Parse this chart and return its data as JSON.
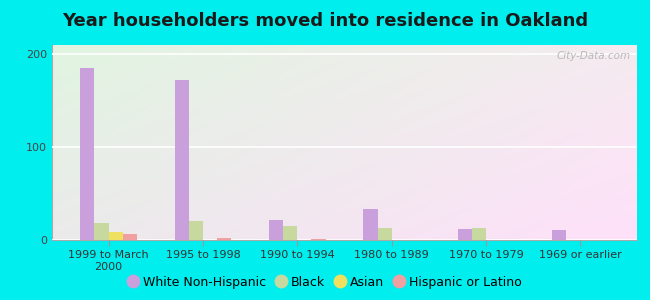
{
  "title": "Year householders moved into residence in Oakland",
  "categories": [
    "1999 to March\n2000",
    "1995 to 1998",
    "1990 to 1994",
    "1980 to 1989",
    "1970 to 1979",
    "1969 or earlier"
  ],
  "series": {
    "White Non-Hispanic": [
      185,
      172,
      22,
      33,
      12,
      11
    ],
    "Black": [
      18,
      20,
      15,
      13,
      13,
      0
    ],
    "Asian": [
      9,
      0,
      0,
      0,
      0,
      0
    ],
    "Hispanic or Latino": [
      7,
      2,
      1,
      0,
      0,
      0
    ]
  },
  "colors": {
    "White Non-Hispanic": "#c9a0dc",
    "Black": "#c8d9a0",
    "Asian": "#f0e060",
    "Hispanic or Latino": "#f0a0a0"
  },
  "ylim": [
    0,
    210
  ],
  "yticks": [
    0,
    100,
    200
  ],
  "bar_width": 0.15,
  "background_color": "#00eeee",
  "watermark": "City-Data.com",
  "title_fontsize": 13,
  "legend_fontsize": 9,
  "tick_fontsize": 8
}
